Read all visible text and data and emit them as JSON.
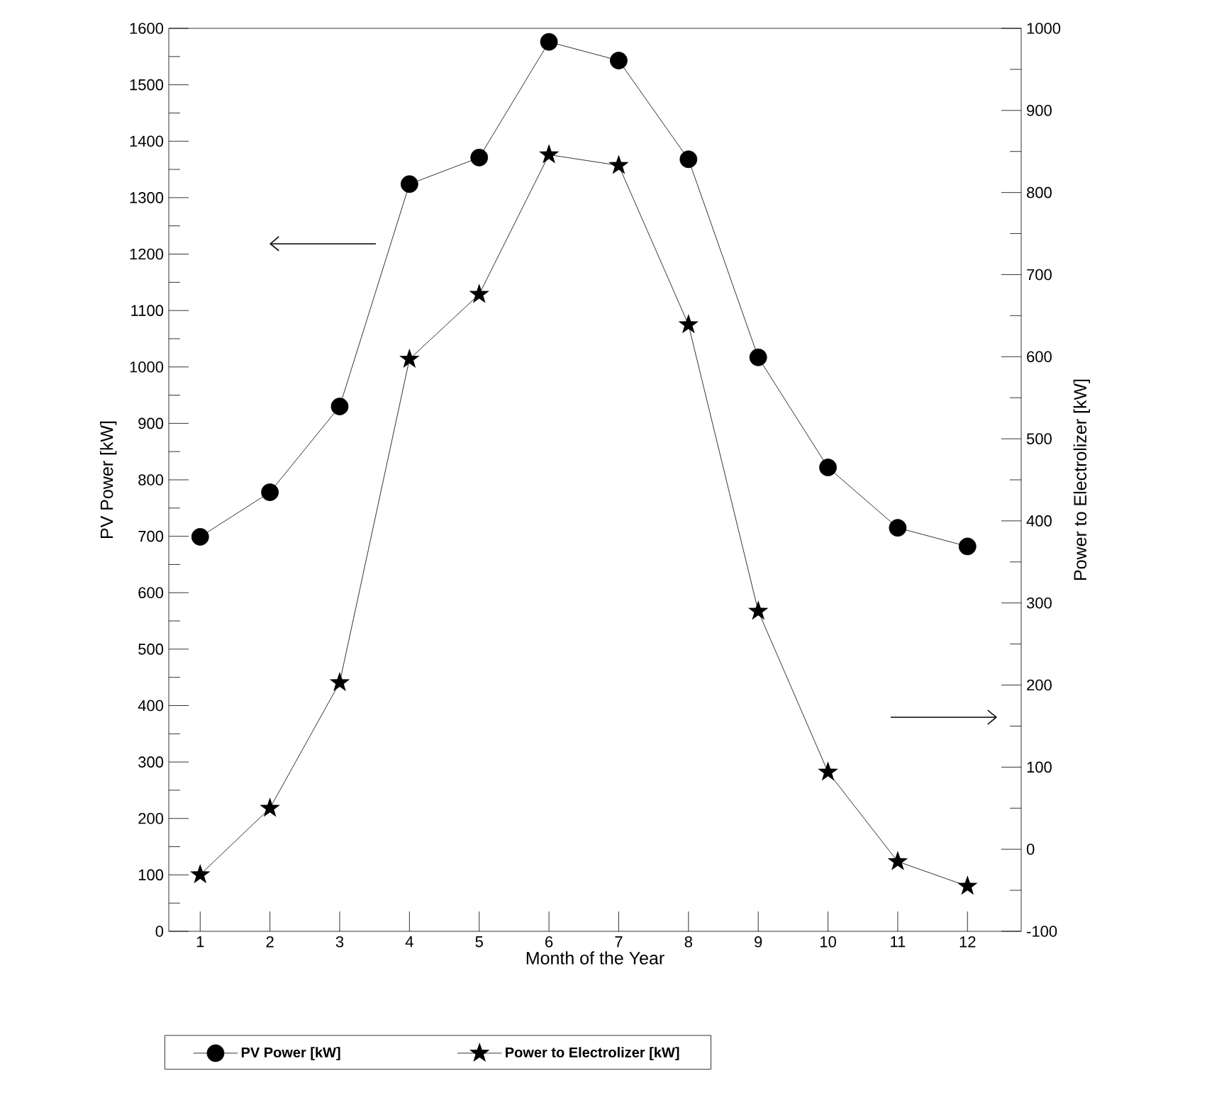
{
  "chart_data": {
    "type": "line",
    "xlabel": "Month of the Year",
    "ylabel": "PV  Power [kW]",
    "y2label": "Power to Electrolizer [kW]",
    "categories": [
      "1",
      "2",
      "3",
      "4",
      "5",
      "6",
      "7",
      "8",
      "9",
      "10",
      "11",
      "12"
    ],
    "series": [
      {
        "name": "PV Power [kW]",
        "color": "#000000",
        "marker": "circle",
        "values": [
          699,
          778,
          930,
          1324,
          1371,
          1576,
          1543,
          1368,
          1017,
          822,
          715,
          682
        ]
      },
      {
        "name": "Power to Electrolizer [kW]",
        "color": "#000000",
        "marker": "star",
        "axis": "y2",
        "values": [
          -31,
          50,
          203,
          597,
          676,
          846,
          833,
          639,
          290,
          94,
          -15,
          -45
        ]
      }
    ],
    "ylim": [
      0,
      1600
    ],
    "yticks": [
      0,
      100,
      200,
      300,
      400,
      500,
      600,
      700,
      800,
      900,
      1000,
      1100,
      1200,
      1300,
      1400,
      1500,
      1600
    ],
    "y2lim": [
      -100,
      1000
    ],
    "y2ticks": [
      -100,
      0,
      100,
      200,
      300,
      400,
      500,
      600,
      700,
      800,
      900,
      1000
    ],
    "grid": false,
    "legend": "bottom",
    "line_style": "solid"
  }
}
